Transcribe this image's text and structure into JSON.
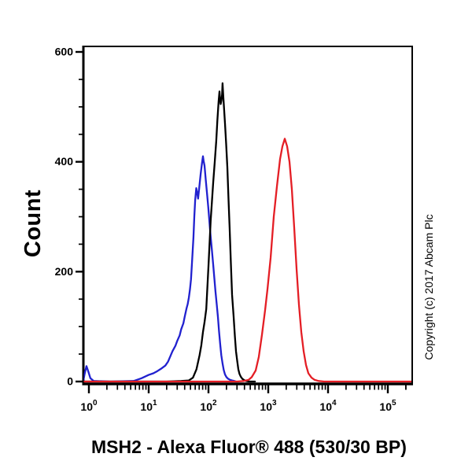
{
  "figure": {
    "title": "MSH2 - Alexa Fluor® 488 (530/30 BP)",
    "y_axis_label": "Count",
    "copyright_notice": "Copyright (c) 2017 Abcam Plc",
    "background_color": "#ffffff"
  },
  "chart_data": {
    "type": "line",
    "subtype": "flow-cytometry-histogram",
    "title": "MSH2 - Alexa Fluor® 488 (530/30 BP)",
    "xlabel": "MSH2 - Alexa Fluor® 488 (530/30 BP)",
    "ylabel": "Count",
    "x_scale": "log10",
    "xlim": [
      0.81,
      250000
    ],
    "ylim": [
      0,
      600
    ],
    "x_major_ticks": [
      1,
      10,
      100,
      1000,
      10000,
      100000
    ],
    "x_tick_base_label": "10",
    "x_minor_multipliers": [
      2,
      3,
      4,
      5,
      6,
      7,
      8,
      9
    ],
    "y_major_ticks": [
      0,
      200,
      400,
      600
    ],
    "y_minor_ticks": [
      50,
      100,
      150,
      250,
      300,
      350,
      450,
      500,
      550
    ],
    "grid": false,
    "legend": null,
    "axis_color": "#000000",
    "series": [
      {
        "name": "blue-curve",
        "color": "#2121cf",
        "points": [
          [
            0.81,
            2
          ],
          [
            0.85,
            14
          ],
          [
            0.91,
            28
          ],
          [
            0.98,
            18
          ],
          [
            1.06,
            6
          ],
          [
            1.2,
            1
          ],
          [
            2.3,
            0
          ],
          [
            5.6,
            1
          ],
          [
            7.6,
            6
          ],
          [
            10,
            12
          ],
          [
            12,
            15
          ],
          [
            14,
            19
          ],
          [
            16,
            23
          ],
          [
            19,
            29
          ],
          [
            21,
            36
          ],
          [
            23,
            46
          ],
          [
            25,
            55
          ],
          [
            28,
            65
          ],
          [
            30,
            74
          ],
          [
            33,
            84
          ],
          [
            35,
            95
          ],
          [
            38,
            106
          ],
          [
            40,
            118
          ],
          [
            43,
            133
          ],
          [
            45,
            141
          ],
          [
            47,
            153
          ],
          [
            49,
            168
          ],
          [
            51,
            186
          ],
          [
            53,
            215
          ],
          [
            56,
            262
          ],
          [
            58,
            300
          ],
          [
            60,
            330
          ],
          [
            62.5,
            352
          ],
          [
            64.5,
            345
          ],
          [
            67,
            333
          ],
          [
            70,
            352
          ],
          [
            74,
            378
          ],
          [
            78,
            398
          ],
          [
            81,
            410
          ],
          [
            83,
            402
          ],
          [
            86,
            393
          ],
          [
            90,
            368
          ],
          [
            94,
            345
          ],
          [
            99,
            318
          ],
          [
            103,
            295
          ],
          [
            108,
            268
          ],
          [
            113,
            245
          ],
          [
            120,
            213
          ],
          [
            126,
            186
          ],
          [
            131,
            164
          ],
          [
            137,
            142
          ],
          [
            144,
            118
          ],
          [
            150,
            92
          ],
          [
            157,
            68
          ],
          [
            164,
            48
          ],
          [
            172,
            33
          ],
          [
            180,
            21
          ],
          [
            189,
            13
          ],
          [
            200,
            8
          ],
          [
            213,
            5
          ],
          [
            230,
            3
          ],
          [
            248,
            2
          ],
          [
            270,
            1
          ],
          [
            289,
            0
          ]
        ]
      },
      {
        "name": "black-curve",
        "color": "#000000",
        "points": [
          [
            0.81,
            0
          ],
          [
            20,
            0
          ],
          [
            35,
            1
          ],
          [
            47,
            2
          ],
          [
            55,
            7
          ],
          [
            63,
            22
          ],
          [
            71,
            48
          ],
          [
            76,
            66
          ],
          [
            81,
            90
          ],
          [
            86,
            108
          ],
          [
            92,
            132
          ],
          [
            100,
            210
          ],
          [
            109,
            293
          ],
          [
            120,
            362
          ],
          [
            128,
            402
          ],
          [
            135,
            438
          ],
          [
            141,
            475
          ],
          [
            148,
            510
          ],
          [
            153,
            528
          ],
          [
            156,
            515
          ],
          [
            160,
            505
          ],
          [
            165,
            512
          ],
          [
            169,
            522
          ],
          [
            172,
            543
          ],
          [
            177,
            520
          ],
          [
            183,
            495
          ],
          [
            189,
            470
          ],
          [
            198,
            432
          ],
          [
            207,
            390
          ],
          [
            216,
            335
          ],
          [
            226,
            280
          ],
          [
            237,
            215
          ],
          [
            248,
            158
          ],
          [
            263,
            120
          ],
          [
            277,
            82
          ],
          [
            289,
            55
          ],
          [
            302,
            38
          ],
          [
            316,
            22
          ],
          [
            330,
            14
          ],
          [
            346,
            9
          ],
          [
            368,
            5
          ],
          [
            391,
            3
          ],
          [
            420,
            1
          ],
          [
            470,
            0
          ],
          [
            600,
            0
          ]
        ]
      },
      {
        "name": "red-curve",
        "color": "#e41e25",
        "points": [
          [
            0.81,
            0
          ],
          [
            100,
            0
          ],
          [
            300,
            0
          ],
          [
            390,
            1
          ],
          [
            469,
            3
          ],
          [
            529,
            8
          ],
          [
            615,
            20
          ],
          [
            695,
            45
          ],
          [
            785,
            85
          ],
          [
            885,
            130
          ],
          [
            970,
            168
          ],
          [
            1094,
            225
          ],
          [
            1236,
            300
          ],
          [
            1396,
            355
          ],
          [
            1574,
            405
          ],
          [
            1726,
            428
          ],
          [
            1888,
            442
          ],
          [
            2070,
            428
          ],
          [
            2265,
            400
          ],
          [
            2483,
            350
          ],
          [
            2716,
            280
          ],
          [
            2976,
            205
          ],
          [
            3258,
            140
          ],
          [
            3573,
            90
          ],
          [
            3908,
            55
          ],
          [
            4285,
            30
          ],
          [
            4688,
            15
          ],
          [
            5297,
            7
          ],
          [
            5970,
            3
          ],
          [
            6950,
            1
          ],
          [
            8590,
            0
          ],
          [
            20000,
            0
          ],
          [
            100000,
            0
          ],
          [
            250000,
            0
          ]
        ]
      }
    ]
  }
}
